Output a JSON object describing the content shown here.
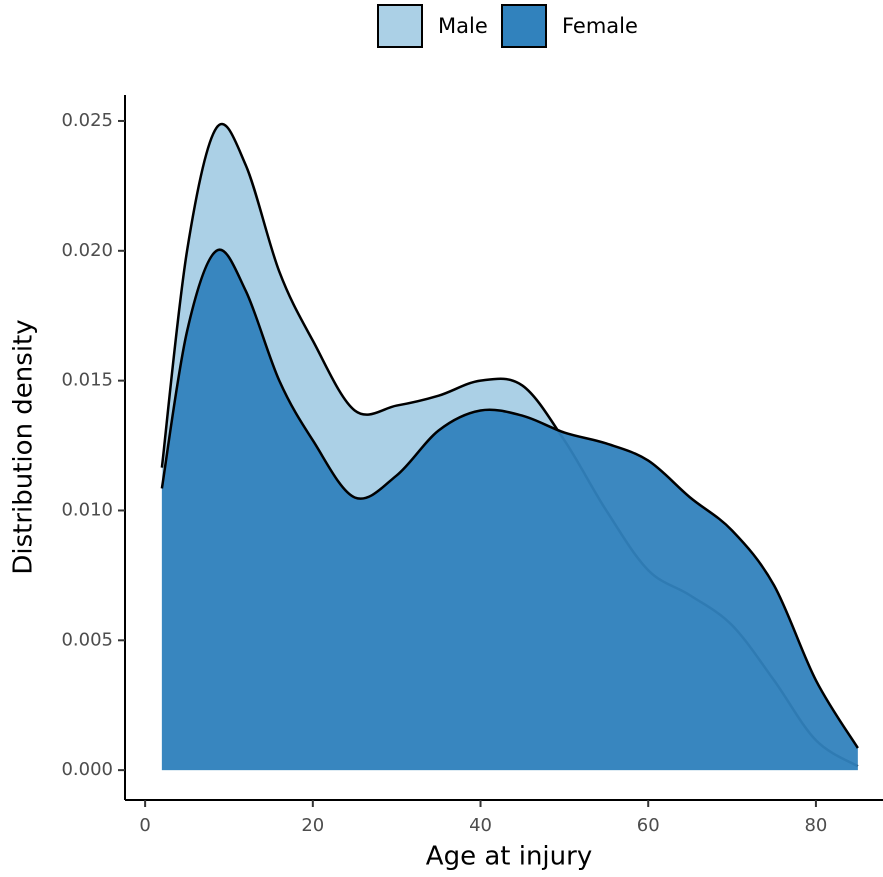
{
  "chart_data": {
    "type": "area",
    "x_label": "Age at injury",
    "y_label": "Distribution density",
    "x": [
      2,
      5,
      8.5,
      12,
      16,
      20,
      25,
      30,
      35,
      40,
      45,
      50,
      55,
      60,
      65,
      70,
      75,
      80,
      85
    ],
    "series": [
      {
        "name": "Male",
        "color": "#abd0e6",
        "values": [
          0.01165,
          0.02,
          0.02473,
          0.0233,
          0.0192,
          0.01654,
          0.01385,
          0.01404,
          0.01442,
          0.015,
          0.01481,
          0.0127,
          0.01,
          0.0077,
          0.00673,
          0.00558,
          0.00346,
          0.00115,
          0.00015
        ]
      },
      {
        "name": "Female",
        "color": "#3182bd",
        "values": [
          0.01085,
          0.0169,
          0.02,
          0.01846,
          0.015,
          0.0127,
          0.0105,
          0.01135,
          0.01308,
          0.01385,
          0.01365,
          0.013,
          0.01258,
          0.01192,
          0.0105,
          0.00923,
          0.00712,
          0.00346,
          0.00085
        ]
      }
    ],
    "xlim": [
      -2.4,
      88
    ],
    "ylim": [
      -0.00115,
      0.026
    ],
    "xticks": [
      0,
      20,
      40,
      60,
      80
    ],
    "yticks": [
      {
        "value": 0,
        "label": "0.000"
      },
      {
        "value": 0.005,
        "label": "0.005"
      },
      {
        "value": 0.01,
        "label": "0.010"
      },
      {
        "value": 0.015,
        "label": "0.015"
      },
      {
        "value": 0.02,
        "label": "0.020"
      },
      {
        "value": 0.025,
        "label": "0.025"
      }
    ],
    "legend": "top"
  }
}
